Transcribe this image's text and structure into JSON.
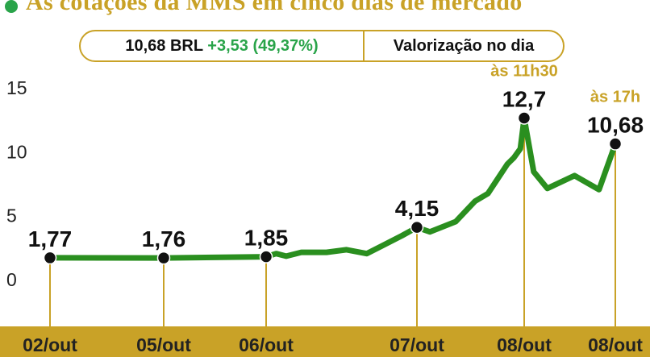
{
  "header": {
    "title": "As cotações da MMS em cinco dias de mercado",
    "title_dot_color": "#2aa44a",
    "summary": {
      "price": "10,68 BRL",
      "change": "+3,53 (49,37%)",
      "change_color": "#2aa44a",
      "label": "Valorização no dia"
    }
  },
  "chart_data": {
    "type": "line",
    "title": "As cotações da MMS em cinco dias de mercado",
    "ylim": [
      0,
      15
    ],
    "yticks": [
      "15",
      "10",
      "5",
      "0"
    ],
    "ytick_values": [
      15,
      10,
      5,
      0
    ],
    "line_color": "#2a8f1f",
    "accent_color": "#c9a227",
    "x_labels": [
      "02/out",
      "05/out",
      "06/out",
      "07/out",
      "08/out",
      "08/out"
    ],
    "x_label_pos": [
      0,
      1,
      2,
      3.5,
      4.33,
      5
    ],
    "series": [
      {
        "x": [
          0,
          1,
          2,
          2.1,
          2.2,
          2.35,
          2.6,
          2.8,
          3.0,
          3.15,
          3.35,
          3.5,
          3.6,
          3.8,
          3.95,
          4.05,
          4.2,
          4.25,
          4.3,
          4.33,
          4.4,
          4.5,
          4.7,
          4.88,
          5.0
        ],
        "values": [
          1.77,
          1.76,
          1.85,
          2.1,
          1.9,
          2.2,
          2.2,
          2.4,
          2.1,
          2.7,
          3.5,
          4.15,
          3.8,
          4.6,
          6.2,
          6.8,
          9.1,
          9.6,
          10.3,
          12.7,
          8.5,
          7.2,
          8.2,
          7.1,
          10.68
        ]
      }
    ],
    "points": [
      {
        "x": 0,
        "y": 1.77,
        "label": "1,77"
      },
      {
        "x": 1,
        "y": 1.76,
        "label": "1,76"
      },
      {
        "x": 2,
        "y": 1.85,
        "label": "1,85"
      },
      {
        "x": 3.5,
        "y": 4.15,
        "label": "4,15"
      },
      {
        "x": 4.33,
        "y": 12.7,
        "label": "12,7",
        "note": "às 11h30"
      },
      {
        "x": 5,
        "y": 10.68,
        "label": "10,68",
        "note": "às 17h"
      }
    ]
  }
}
